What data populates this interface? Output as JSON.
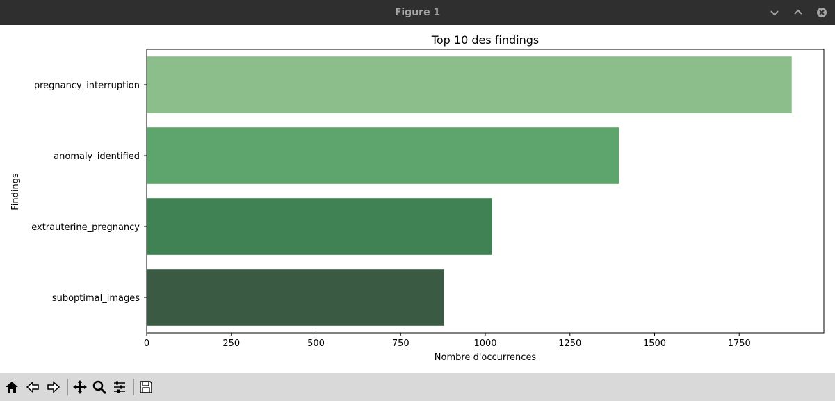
{
  "window": {
    "title": "Figure 1",
    "controls": [
      "minimize-icon",
      "maximize-icon",
      "close-icon"
    ]
  },
  "toolbar": {
    "buttons": [
      "home-icon",
      "back-icon",
      "forward-icon",
      "pan-icon",
      "zoom-icon",
      "configure-subplots-icon",
      "save-icon"
    ]
  },
  "chart_data": {
    "type": "bar",
    "orientation": "horizontal",
    "title": "Top 10 des findings",
    "xlabel": "Nombre d'occurrences",
    "ylabel": "Findings",
    "categories": [
      "pregnancy_interruption",
      "anomaly_identified",
      "extrauterine_pregnancy",
      "suboptimal_images"
    ],
    "values": [
      1905,
      1395,
      1020,
      878
    ],
    "colors": [
      "#8bbe8b",
      "#5ea56d",
      "#408254",
      "#3b5a43"
    ],
    "xlim": [
      0,
      2000
    ],
    "xticks": [
      {
        "value": 0,
        "label": "0"
      },
      {
        "value": 250,
        "label": "250"
      },
      {
        "value": 500,
        "label": "500"
      },
      {
        "value": 750,
        "label": "750"
      },
      {
        "value": 1000,
        "label": "1000"
      },
      {
        "value": 1250,
        "label": "1250"
      },
      {
        "value": 1500,
        "label": "1500"
      },
      {
        "value": 1750,
        "label": "1750"
      }
    ],
    "grid": false,
    "legend": "none"
  }
}
